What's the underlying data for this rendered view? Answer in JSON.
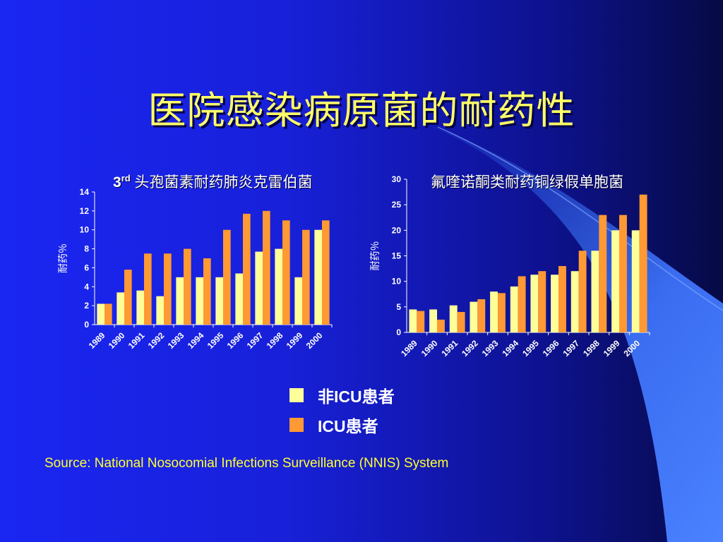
{
  "slide": {
    "title": "医院感染病原菌的耐药性",
    "source": "Source: National Nosocomial Infections Surveillance (NNIS) System"
  },
  "legend": {
    "items": [
      {
        "label": "非ICU患者",
        "color": "#ffff99"
      },
      {
        "label": "ICU患者",
        "color": "#ff9933"
      }
    ]
  },
  "colors": {
    "non_icu": "#ffff99",
    "icu": "#ff9933",
    "axis": "#ffffff",
    "title": "#ffff66"
  },
  "chart_data": [
    {
      "type": "bar",
      "title_main": "3",
      "title_sup": "rd",
      "title_rest": " 头孢菌素耐药肺炎克雷伯菌",
      "ylabel": "耐药％",
      "ylim": [
        0,
        14
      ],
      "yticks": [
        0,
        2,
        4,
        6,
        8,
        10,
        12,
        14
      ],
      "categories": [
        "1989",
        "1990",
        "1991",
        "1992",
        "1993",
        "1994",
        "1995",
        "1996",
        "1997",
        "1998",
        "1999",
        "2000"
      ],
      "series": [
        {
          "name": "非ICU患者",
          "values": [
            2.2,
            3.4,
            3.6,
            3.0,
            5.0,
            5.0,
            5.0,
            5.4,
            7.7,
            8.0,
            5.0,
            10.0
          ]
        },
        {
          "name": "ICU患者",
          "values": [
            2.2,
            5.8,
            7.5,
            7.5,
            8.0,
            7.0,
            10.0,
            11.7,
            12.0,
            11.0,
            10.0,
            11.0
          ]
        }
      ]
    },
    {
      "type": "bar",
      "title": "氟喹诺酮类耐药铜绿假单胞菌",
      "ylabel": "耐药％",
      "ylim": [
        0,
        30
      ],
      "yticks": [
        0,
        5,
        10,
        15,
        20,
        25,
        30
      ],
      "categories": [
        "1989",
        "1990",
        "1991",
        "1992",
        "1993",
        "1994",
        "1995",
        "1996",
        "1997",
        "1998",
        "1999",
        "2000"
      ],
      "series": [
        {
          "name": "非ICU患者",
          "values": [
            4.5,
            4.5,
            5.3,
            6.0,
            8.0,
            9.0,
            11.3,
            11.3,
            12.0,
            16.0,
            20.0,
            20.0
          ]
        },
        {
          "name": "ICU患者",
          "values": [
            4.2,
            2.5,
            4.0,
            6.5,
            7.7,
            11.0,
            12.0,
            13.0,
            16.0,
            23.0,
            23.0,
            27.0
          ]
        }
      ]
    }
  ]
}
